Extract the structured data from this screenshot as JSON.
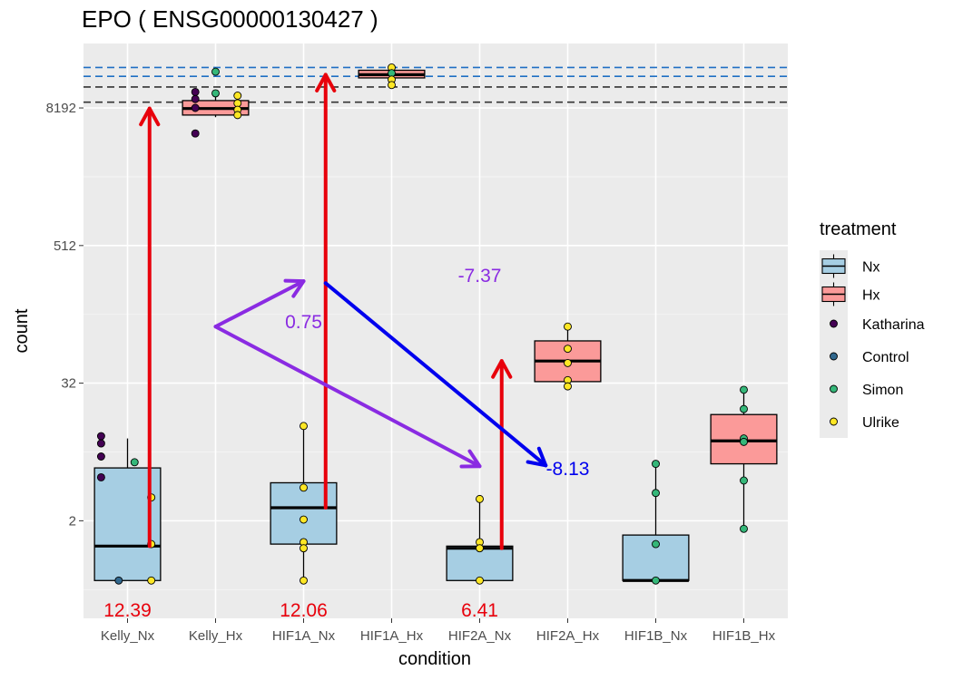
{
  "chart_data": {
    "type": "box",
    "title": "EPO ( ENSG00000130427 )",
    "xlabel": "condition",
    "ylabel": "count",
    "y_scale": "log2",
    "y_ticks": [
      2,
      32,
      512,
      8192
    ],
    "y_tick_labels": [
      "2",
      "32",
      "512",
      "8192"
    ],
    "ylim": [
      0.28,
      30000
    ],
    "categories": [
      "Kelly_Nx",
      "Kelly_Hx",
      "HIF1A_Nx",
      "HIF1A_Hx",
      "HIF2A_Nx",
      "HIF2A_Hx",
      "HIF1B_Nx",
      "HIF1B_Hx"
    ],
    "treatment_of_category": [
      "Nx",
      "Hx",
      "Nx",
      "Hx",
      "Nx",
      "Hx",
      "Nx",
      "Hx"
    ],
    "boxes": [
      {
        "category": "Kelly_Nx",
        "whisker_low": 0.6,
        "q1": 0.6,
        "median": 1.2,
        "q3": 5.8,
        "whisker_high": 10.5
      },
      {
        "category": "Kelly_Hx",
        "whisker_low": 6800,
        "q1": 7100,
        "median": 8100,
        "q3": 9500,
        "whisker_high": 11000
      },
      {
        "category": "HIF1A_Nx",
        "whisker_low": 0.6,
        "q1": 1.25,
        "median": 2.6,
        "q3": 4.3,
        "whisker_high": 13.5
      },
      {
        "category": "HIF1A_Hx",
        "whisker_low": 14500,
        "q1": 15000,
        "median": 16000,
        "q3": 17500,
        "whisker_high": 18500
      },
      {
        "category": "HIF2A_Nx",
        "whisker_low": 0.6,
        "q1": 0.6,
        "median": 1.15,
        "q3": 1.2,
        "whisker_high": 3.2
      },
      {
        "category": "HIF2A_Hx",
        "whisker_low": 30,
        "q1": 33,
        "median": 50,
        "q3": 75,
        "whisker_high": 100
      },
      {
        "category": "HIF1B_Nx",
        "whisker_low": 0.6,
        "q1": 0.6,
        "median": 0.6,
        "q3": 1.5,
        "whisker_high": 6.5
      },
      {
        "category": "HIF1B_Hx",
        "whisker_low": 1.7,
        "q1": 6.3,
        "median": 10,
        "q3": 17,
        "whisker_high": 27
      }
    ],
    "points": [
      {
        "category": "Kelly_Nx",
        "dx": -0.3,
        "y": 11,
        "group": "Katharina"
      },
      {
        "category": "Kelly_Nx",
        "dx": -0.3,
        "y": 9.5,
        "group": "Katharina"
      },
      {
        "category": "Kelly_Nx",
        "dx": -0.3,
        "y": 7.3,
        "group": "Katharina"
      },
      {
        "category": "Kelly_Nx",
        "dx": -0.3,
        "y": 4.8,
        "group": "Katharina"
      },
      {
        "category": "Kelly_Nx",
        "dx": -0.1,
        "y": 0.6,
        "group": "Control"
      },
      {
        "category": "Kelly_Nx",
        "dx": 0.08,
        "y": 6.5,
        "group": "Simon"
      },
      {
        "category": "Kelly_Nx",
        "dx": 0.27,
        "y": 3.2,
        "group": "Ulrike"
      },
      {
        "category": "Kelly_Nx",
        "dx": 0.27,
        "y": 1.25,
        "group": "Ulrike"
      },
      {
        "category": "Kelly_Nx",
        "dx": 0.27,
        "y": 0.6,
        "group": "Ulrike"
      },
      {
        "category": "Kelly_Hx",
        "dx": -0.23,
        "y": 4900,
        "group": "Katharina"
      },
      {
        "category": "Kelly_Hx",
        "dx": -0.23,
        "y": 11300,
        "group": "Katharina"
      },
      {
        "category": "Kelly_Hx",
        "dx": -0.23,
        "y": 9800,
        "group": "Katharina"
      },
      {
        "category": "Kelly_Hx",
        "dx": -0.23,
        "y": 8200,
        "group": "Katharina"
      },
      {
        "category": "Kelly_Hx",
        "dx": 0.0,
        "y": 17000,
        "group": "Simon"
      },
      {
        "category": "Kelly_Hx",
        "dx": 0.0,
        "y": 11000,
        "group": "Simon"
      },
      {
        "category": "Kelly_Hx",
        "dx": 0.25,
        "y": 10500,
        "group": "Ulrike"
      },
      {
        "category": "Kelly_Hx",
        "dx": 0.25,
        "y": 9000,
        "group": "Ulrike"
      },
      {
        "category": "Kelly_Hx",
        "dx": 0.25,
        "y": 7900,
        "group": "Ulrike"
      },
      {
        "category": "Kelly_Hx",
        "dx": 0.25,
        "y": 7100,
        "group": "Ulrike"
      },
      {
        "category": "HIF1A_Nx",
        "dx": 0.0,
        "y": 13.5,
        "group": "Ulrike"
      },
      {
        "category": "HIF1A_Nx",
        "dx": 0.0,
        "y": 3.9,
        "group": "Ulrike"
      },
      {
        "category": "HIF1A_Nx",
        "dx": 0.0,
        "y": 2.05,
        "group": "Ulrike"
      },
      {
        "category": "HIF1A_Nx",
        "dx": 0.0,
        "y": 1.3,
        "group": "Ulrike"
      },
      {
        "category": "HIF1A_Nx",
        "dx": 0.0,
        "y": 1.15,
        "group": "Ulrike"
      },
      {
        "category": "HIF1A_Nx",
        "dx": 0.0,
        "y": 0.6,
        "group": "Ulrike"
      },
      {
        "category": "HIF1A_Hx",
        "dx": 0.0,
        "y": 18500,
        "group": "Ulrike"
      },
      {
        "category": "HIF1A_Hx",
        "dx": 0.0,
        "y": 16500,
        "group": "Simon"
      },
      {
        "category": "HIF1A_Hx",
        "dx": 0.0,
        "y": 14500,
        "group": "Ulrike"
      },
      {
        "category": "HIF1A_Hx",
        "dx": 0.0,
        "y": 13000,
        "group": "Ulrike"
      },
      {
        "category": "HIF2A_Nx",
        "dx": 0.0,
        "y": 3.1,
        "group": "Ulrike"
      },
      {
        "category": "HIF2A_Nx",
        "dx": 0.0,
        "y": 1.3,
        "group": "Ulrike"
      },
      {
        "category": "HIF2A_Nx",
        "dx": 0.0,
        "y": 1.15,
        "group": "Ulrike"
      },
      {
        "category": "HIF2A_Nx",
        "dx": 0.0,
        "y": 0.6,
        "group": "Ulrike"
      },
      {
        "category": "HIF2A_Hx",
        "dx": 0.0,
        "y": 100,
        "group": "Ulrike"
      },
      {
        "category": "HIF2A_Hx",
        "dx": 0.0,
        "y": 64,
        "group": "Ulrike"
      },
      {
        "category": "HIF2A_Hx",
        "dx": 0.0,
        "y": 48,
        "group": "Ulrike"
      },
      {
        "category": "HIF2A_Hx",
        "dx": 0.0,
        "y": 34,
        "group": "Ulrike"
      },
      {
        "category": "HIF2A_Hx",
        "dx": 0.0,
        "y": 30,
        "group": "Ulrike"
      },
      {
        "category": "HIF1B_Nx",
        "dx": 0.0,
        "y": 6.3,
        "group": "Simon"
      },
      {
        "category": "HIF1B_Nx",
        "dx": 0.0,
        "y": 3.5,
        "group": "Simon"
      },
      {
        "category": "HIF1B_Nx",
        "dx": 0.0,
        "y": 1.25,
        "group": "Simon"
      },
      {
        "category": "HIF1B_Nx",
        "dx": 0.0,
        "y": 0.6,
        "group": "Simon"
      },
      {
        "category": "HIF1B_Hx",
        "dx": 0.0,
        "y": 28,
        "group": "Simon"
      },
      {
        "category": "HIF1B_Hx",
        "dx": 0.0,
        "y": 19,
        "group": "Simon"
      },
      {
        "category": "HIF1B_Hx",
        "dx": 0.0,
        "y": 10.5,
        "group": "Simon"
      },
      {
        "category": "HIF1B_Hx",
        "dx": 0.0,
        "y": 9.8,
        "group": "Simon"
      },
      {
        "category": "HIF1B_Hx",
        "dx": 0.0,
        "y": 4.5,
        "group": "Simon"
      },
      {
        "category": "HIF1B_Hx",
        "dx": 0.0,
        "y": 1.7,
        "group": "Simon"
      }
    ],
    "hlines": [
      {
        "y": 18500,
        "color": "#1f6fc4",
        "style": "dashed"
      },
      {
        "y": 15500,
        "color": "#1f6fc4",
        "style": "dashed"
      },
      {
        "y": 12500,
        "color": "#333333",
        "style": "dashed"
      },
      {
        "y": 9200,
        "color": "#333333",
        "style": "dashed"
      }
    ],
    "arrows": [
      {
        "from": {
          "category": "Kelly_Nx",
          "dx": 0.25,
          "y": 1.2
        },
        "to": {
          "category": "Kelly_Nx",
          "dx": 0.25,
          "y": 8100
        },
        "color": "#e8000b"
      },
      {
        "from": {
          "category": "HIF1A_Nx",
          "dx": 0.25,
          "y": 2.6
        },
        "to": {
          "category": "HIF1A_Nx",
          "dx": 0.25,
          "y": 16000
        },
        "color": "#e8000b"
      },
      {
        "from": {
          "category": "HIF2A_Nx",
          "dx": 0.25,
          "y": 1.15
        },
        "to": {
          "category": "HIF2A_Nx",
          "dx": 0.25,
          "y": 50
        },
        "color": "#e8000b"
      },
      {
        "from": {
          "category": "Kelly_Hx",
          "dx": 0.0,
          "y": 100
        },
        "to": {
          "category": "HIF1A_Nx",
          "dx": 0.0,
          "y": 250
        },
        "color": "#8a2be2"
      },
      {
        "from": {
          "category": "Kelly_Hx",
          "dx": 0.0,
          "y": 100
        },
        "to": {
          "category": "HIF2A_Nx",
          "dx": 0.0,
          "y": 6.0
        },
        "color": "#8a2be2"
      },
      {
        "from": {
          "category": "HIF1A_Nx",
          "dx": 0.25,
          "y": 240
        },
        "to": {
          "category": "HIF2A_Hx",
          "dx": -0.25,
          "y": 6.1
        },
        "color": "#0000ee"
      }
    ],
    "annotations": [
      {
        "text": "12.39",
        "category": "Kelly_Nx",
        "dx": 0.0,
        "y": 0.33,
        "color": "#e8000b"
      },
      {
        "text": "12.06",
        "category": "HIF1A_Nx",
        "dx": 0.0,
        "y": 0.33,
        "color": "#e8000b"
      },
      {
        "text": "6.41",
        "category": "HIF2A_Nx",
        "dx": 0.0,
        "y": 0.33,
        "color": "#e8000b"
      },
      {
        "text": "0.75",
        "category": "HIF1A_Nx",
        "dx": 0.0,
        "y": 110,
        "color": "#8a2be2"
      },
      {
        "text": "-7.37",
        "category": "HIF2A_Nx",
        "dx": 0.0,
        "y": 280,
        "color": "#8a2be2"
      },
      {
        "text": "-8.13",
        "category": "HIF2A_Hx",
        "dx": 0.0,
        "y": 5.7,
        "color": "#0000ee"
      }
    ],
    "legend": {
      "title": "treatment",
      "placement": "right",
      "fill_items": [
        {
          "label": "Nx",
          "color": "#a6cee3"
        },
        {
          "label": "Hx",
          "color": "#fb9a99"
        }
      ],
      "point_items": [
        {
          "label": "Katharina",
          "color": "#440154"
        },
        {
          "label": "Control",
          "color": "#31688e"
        },
        {
          "label": "Simon",
          "color": "#35b779"
        },
        {
          "label": "Ulrike",
          "color": "#fde725"
        }
      ]
    },
    "grid": true,
    "panel_background": "#ebebeb"
  }
}
